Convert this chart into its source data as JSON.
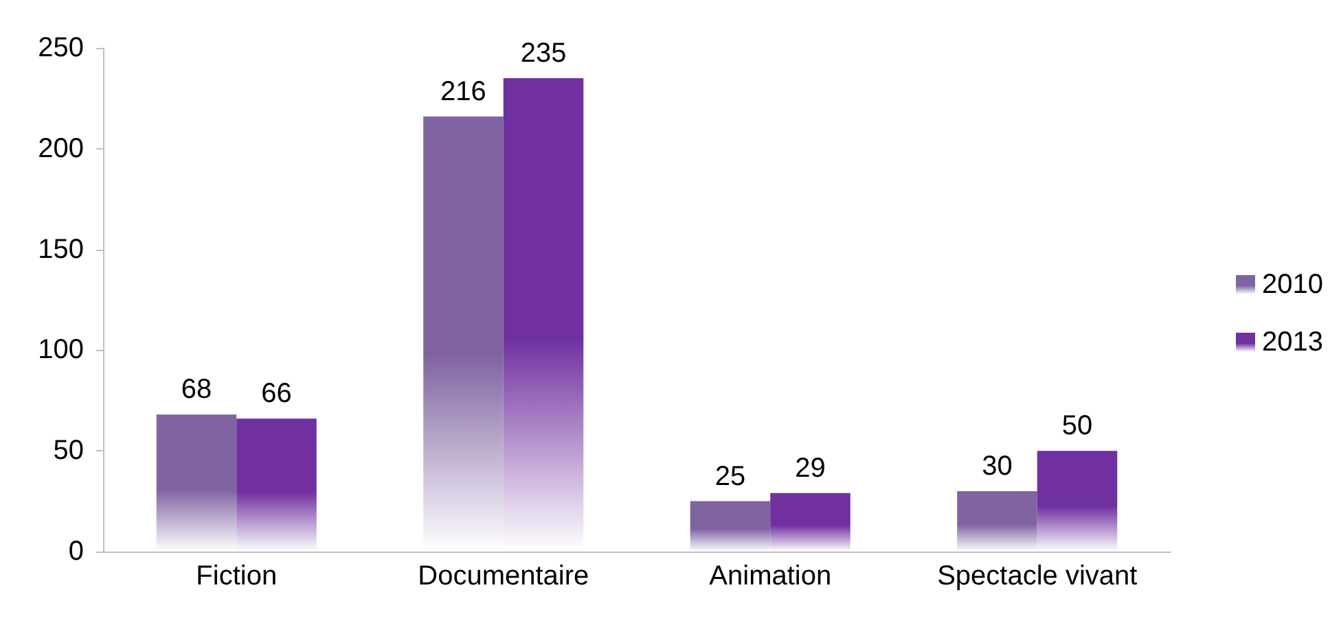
{
  "chart_data": {
    "type": "bar",
    "categories": [
      "Fiction",
      "Documentaire",
      "Animation",
      "Spectacle vivant"
    ],
    "series": [
      {
        "name": "2010",
        "color": "#8064a2",
        "values": [
          68,
          216,
          25,
          30
        ]
      },
      {
        "name": "2013",
        "color": "#7030a0",
        "values": [
          66,
          235,
          29,
          50
        ]
      }
    ],
    "ylim": [
      0,
      250
    ],
    "yticks": [
      0,
      50,
      100,
      150,
      200,
      250
    ],
    "grid": false,
    "legend": "right",
    "data_labels": true
  }
}
